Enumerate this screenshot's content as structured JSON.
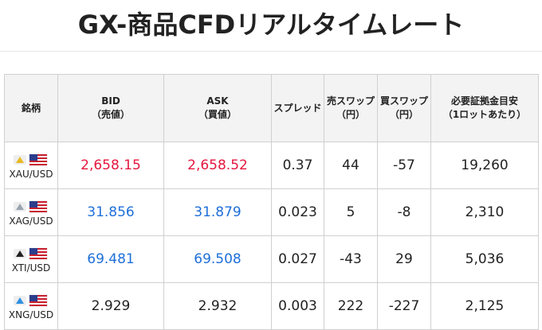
{
  "header": {
    "title": "GX-商品CFDリアルタイムレート"
  },
  "table": {
    "columns": [
      [
        "銘柄"
      ],
      [
        "BID",
        "（売値）"
      ],
      [
        "ASK",
        "（買値）"
      ],
      [
        "スプレッド"
      ],
      [
        "売スワップ",
        "（円）"
      ],
      [
        "買スワップ",
        "（円）"
      ],
      [
        "必要証拠金目安",
        "（1ロットあたり）"
      ]
    ],
    "rows": [
      {
        "symbol": "XAU/USD",
        "icon": "#e8b923",
        "price_color": "#e5173f",
        "cells": [
          "2,658.15",
          "2,658.52",
          "0.37",
          "44",
          "-57",
          "19,260"
        ]
      },
      {
        "symbol": "XAG/USD",
        "icon": "#9aa4b0",
        "price_color": "#1e6fd9",
        "cells": [
          "31.856",
          "31.879",
          "0.023",
          "5",
          "-8",
          "2,310"
        ]
      },
      {
        "symbol": "XTI/USD",
        "icon": "#222222",
        "price_color": "#1e6fd9",
        "cells": [
          "69.481",
          "69.508",
          "0.027",
          "-43",
          "29",
          "5,036"
        ]
      },
      {
        "symbol": "XNG/USD",
        "icon": "#2d8fe0",
        "price_color": "#222222",
        "cells": [
          "2.929",
          "2.932",
          "0.003",
          "222",
          "-227",
          "2,125"
        ]
      }
    ]
  }
}
